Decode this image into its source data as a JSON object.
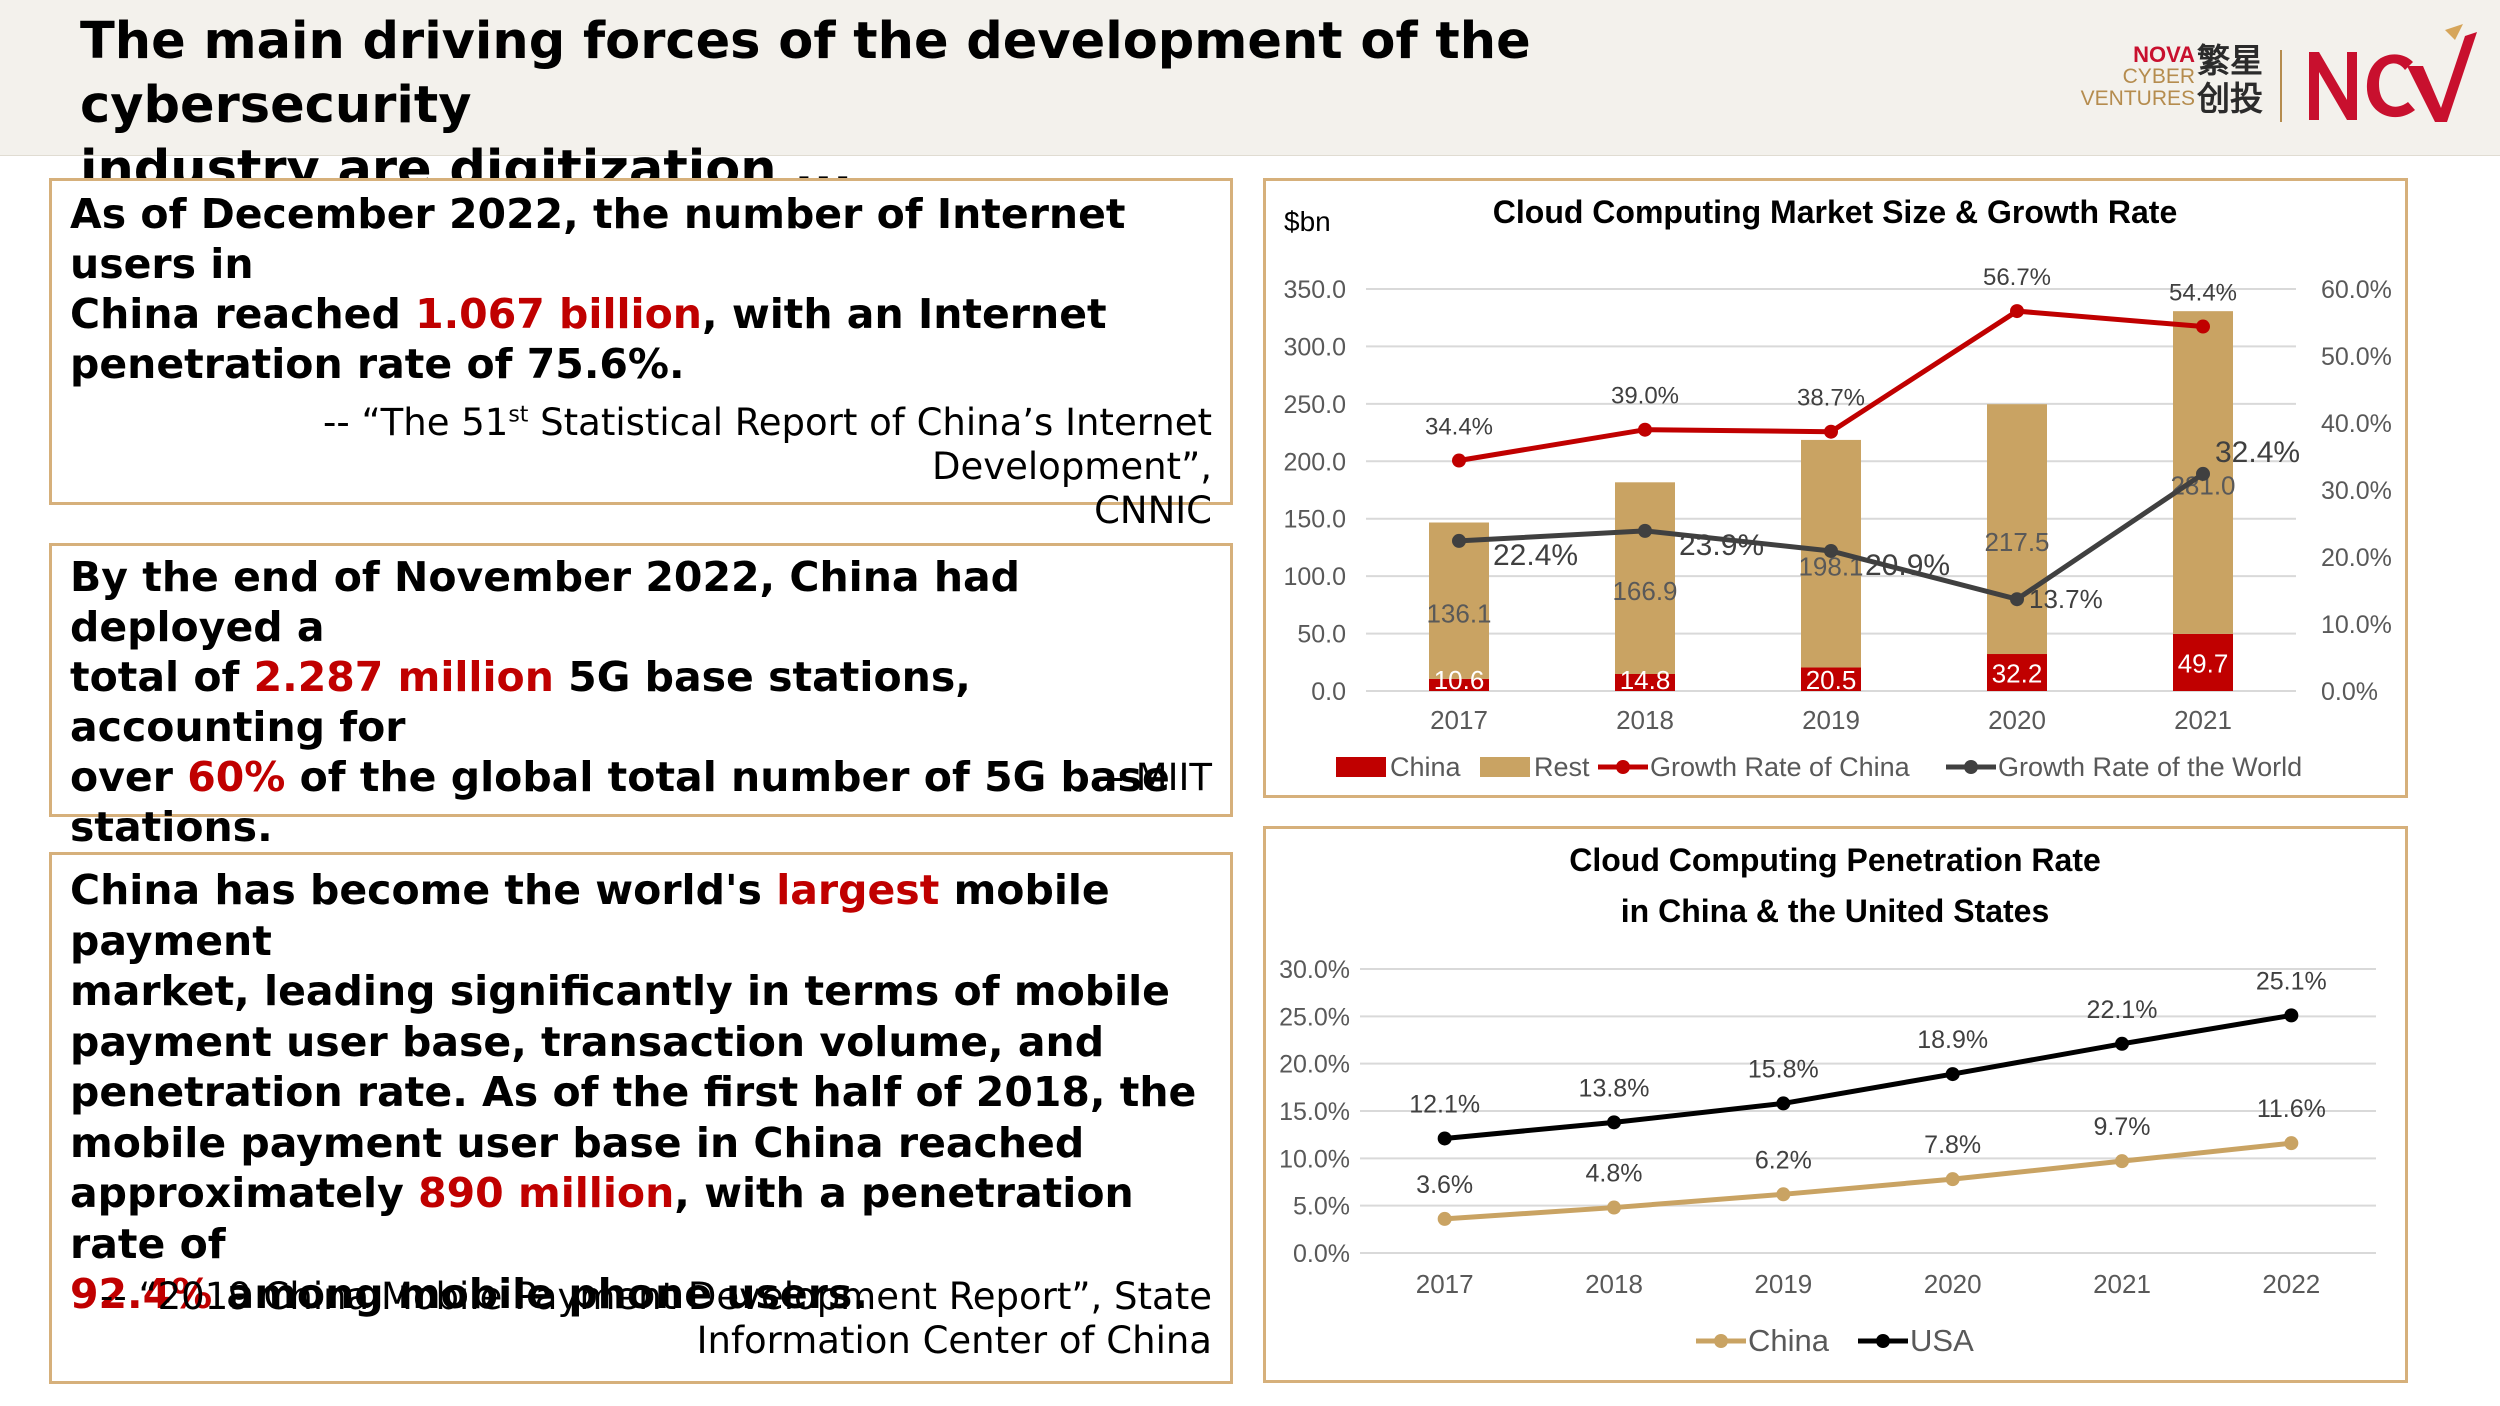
{
  "header": {
    "title_line1": "The main driving forces of the development of the cybersecurity",
    "title_line2": "industry are digitization ...",
    "logo": {
      "nova": "NOVA",
      "cyber": "CYBER",
      "ventures": "VENTURES",
      "cjk_line1": "繁星",
      "cjk_line2": "创投",
      "mark_text": "NCV"
    }
  },
  "panels": {
    "internet": {
      "t1": "As of December 2022, the number of Internet users in",
      "t2": "China reached ",
      "hl1": "1.067 billion",
      "t3": ", with an Internet",
      "t4": "penetration rate of 75.6%.",
      "src1_a": "-- “The 51",
      "src1_sup": "st",
      "src1_b": " Statistical Report of China’s Internet Development”,",
      "src2": "CNNIC"
    },
    "fiveg": {
      "t1": "By the end of November 2022, China had deployed a",
      "t2": "total of ",
      "hl1": "2.287 million",
      "t3": " 5G base stations, accounting for",
      "t4": "over ",
      "hl2": "60%",
      "t5": " of the global total number of 5G base",
      "t6": "stations.",
      "src": "-- MIIT"
    },
    "payment": {
      "l1a": "China has become the world's ",
      "l1hl": "largest",
      "l1b": " mobile payment",
      "l2": "market, leading significantly in terms of mobile",
      "l3": "payment user base, transaction volume, and",
      "l4": "penetration rate. As of the first half of 2018, the",
      "l5": "mobile payment user base in China reached",
      "l6a": "approximately ",
      "l6hl": "890 million",
      "l6b": ", with a penetration rate of",
      "l7hl": "92.4%",
      "l7b": " among mobile phone users.",
      "src1": "-- “2019 China Mobile Payment Development Report”, State",
      "src2": "Information Center of China"
    }
  },
  "colors": {
    "red": "#c00000",
    "tan": "#c9a363",
    "dark": "#404040",
    "black": "#000000",
    "border": "#d6b07b"
  },
  "chart_data": [
    {
      "type": "bar",
      "title": "Cloud Computing Market Size & Growth Rate",
      "unit_label": "$bn",
      "categories": [
        "2017",
        "2018",
        "2019",
        "2020",
        "2021"
      ],
      "series": [
        {
          "name": "China",
          "kind": "stacked-bar",
          "values": [
            10.6,
            14.8,
            20.5,
            32.2,
            49.7
          ],
          "labels": [
            "10.6",
            "14.8",
            "20.5",
            "32.2",
            "49.7"
          ]
        },
        {
          "name": "Rest",
          "kind": "stacked-bar",
          "values": [
            136.1,
            166.9,
            198.1,
            217.5,
            281.0
          ],
          "labels": [
            "136.1",
            "166.9",
            "198.1",
            "217.5",
            "281.0"
          ]
        },
        {
          "name": "Growth Rate of China",
          "kind": "line",
          "axis": "right",
          "values": [
            34.4,
            39.0,
            38.7,
            56.7,
            54.4
          ],
          "labels": [
            "34.4%",
            "39.0%",
            "38.7%",
            "56.7%",
            "54.4%"
          ]
        },
        {
          "name": "Growth Rate of the World",
          "kind": "line",
          "axis": "right",
          "values": [
            22.4,
            23.9,
            20.9,
            13.7,
            32.4
          ],
          "labels": [
            "22.4%",
            "23.9%",
            "20.9%",
            "13.7%",
            "32.4%"
          ]
        }
      ],
      "ylim": [
        0,
        350
      ],
      "y_ticks": [
        "0.0",
        "50.0",
        "100.0",
        "150.0",
        "200.0",
        "250.0",
        "300.0",
        "350.0"
      ],
      "y2lim": [
        0,
        60
      ],
      "y2_ticks": [
        "0.0%",
        "10.0%",
        "20.0%",
        "30.0%",
        "40.0%",
        "50.0%",
        "60.0%"
      ],
      "legend_position": "bottom",
      "grid": true
    },
    {
      "type": "line",
      "title_line1": "Cloud Computing Penetration Rate",
      "title_line2": "in China & the United States",
      "categories": [
        "2017",
        "2018",
        "2019",
        "2020",
        "2021",
        "2022"
      ],
      "series": [
        {
          "name": "China",
          "values": [
            3.6,
            4.8,
            6.2,
            7.8,
            9.7,
            11.6
          ],
          "labels": [
            "3.6%",
            "4.8%",
            "6.2%",
            "7.8%",
            "9.7%",
            "11.6%"
          ]
        },
        {
          "name": "USA",
          "values": [
            12.1,
            13.8,
            15.8,
            18.9,
            22.1,
            25.1
          ],
          "labels": [
            "12.1%",
            "13.8%",
            "15.8%",
            "18.9%",
            "22.1%",
            "25.1%"
          ]
        }
      ],
      "ylim": [
        0,
        30
      ],
      "y_ticks": [
        "0.0%",
        "5.0%",
        "10.0%",
        "15.0%",
        "20.0%",
        "25.0%",
        "30.0%"
      ],
      "legend_position": "bottom",
      "grid": true
    }
  ]
}
